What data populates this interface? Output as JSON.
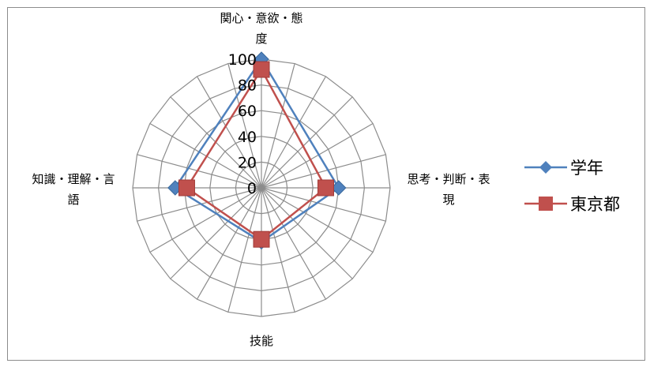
{
  "chart_data": {
    "type": "radar",
    "axes": [
      "関心・意欲・態度",
      "思考・判断・表現",
      "技能",
      "知識・理解・言語"
    ],
    "axis_label_lines": [
      [
        "関心・意欲・態",
        "度"
      ],
      [
        "思考・判断・表",
        "現"
      ],
      [
        "技能"
      ],
      [
        "知識・理解・言",
        "語"
      ]
    ],
    "rlim": [
      0,
      100
    ],
    "ticks": [
      0,
      20,
      40,
      60,
      80,
      100
    ],
    "tick_labels": [
      "0",
      "20",
      "40",
      "60",
      "80",
      "100"
    ],
    "grid_spokes": 24,
    "series": [
      {
        "name": "学年",
        "values": [
          100,
          60,
          42,
          67
        ],
        "color": "#4f81bd",
        "marker": "diamond"
      },
      {
        "name": "東京都",
        "values": [
          92,
          50,
          40,
          58
        ],
        "color": "#c0504d",
        "marker": "square"
      }
    ],
    "legend_position": "right"
  }
}
